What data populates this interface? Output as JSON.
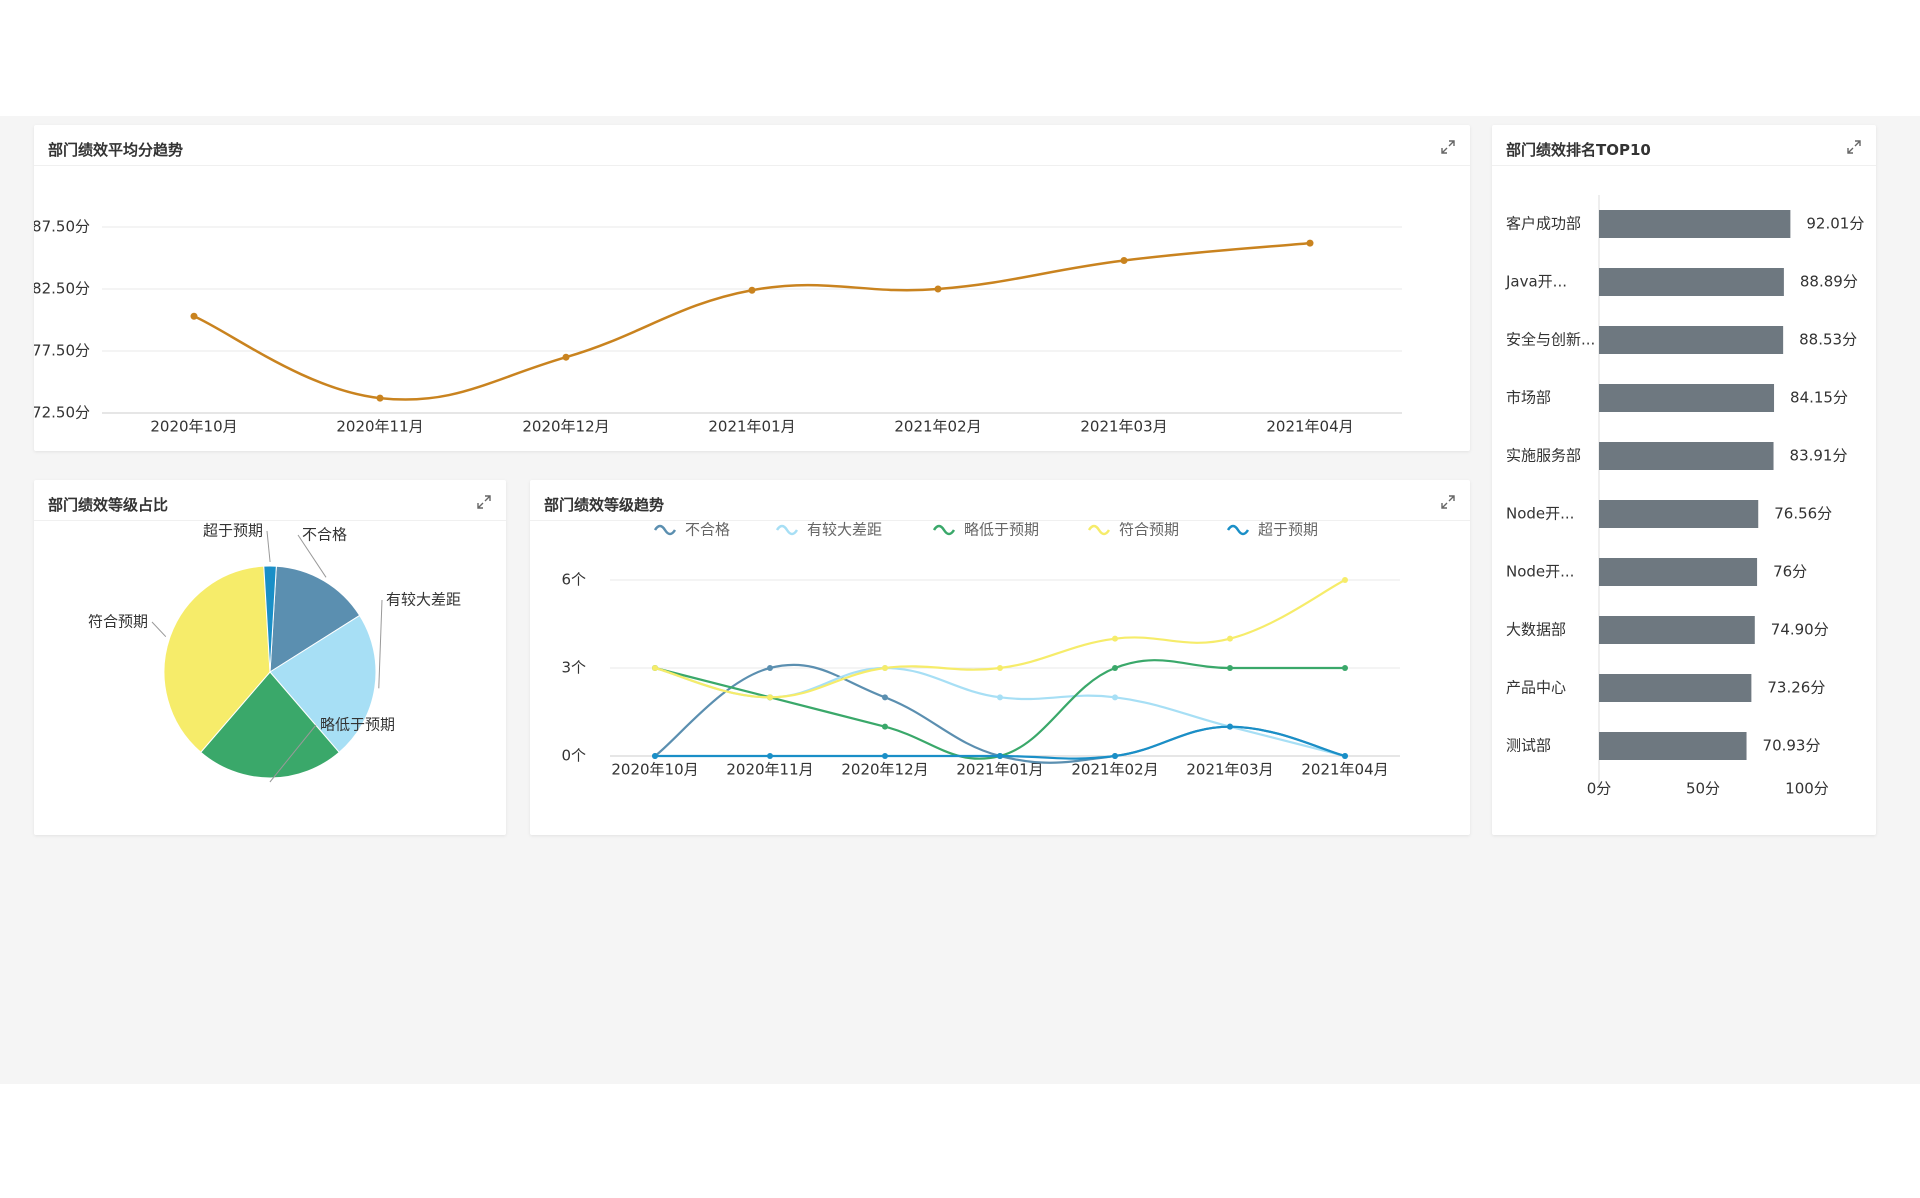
{
  "panels": {
    "line": {
      "title": "部门绩效平均分趋势"
    },
    "ranking": {
      "title": "部门绩效排名TOP10"
    },
    "pie": {
      "title": "部门绩效等级占比"
    },
    "grades": {
      "title": "部门绩效等级趋势"
    }
  },
  "icons": {
    "expand": "expand-arrows-icon"
  },
  "colors": {
    "avg_line": "#c9831f",
    "bar": "#6e7880",
    "不合格": "#5b8fb0",
    "有较大差距": "#a7dff5",
    "略低于预期": "#3aa86a",
    "符合预期": "#f6ec6a",
    "超于预期": "#1a8fc7"
  },
  "chart_data": [
    {
      "id": "avg-trend",
      "type": "line",
      "title": "部门绩效平均分趋势",
      "categories": [
        "2020年10月",
        "2020年11月",
        "2020年12月",
        "2021年01月",
        "2021年02月",
        "2021年03月",
        "2021年04月"
      ],
      "values": [
        80.3,
        73.7,
        77.0,
        82.4,
        82.5,
        84.8,
        86.2
      ],
      "y_ticks": [
        "72.50分",
        "77.50分",
        "82.50分",
        "87.50分"
      ],
      "ylim": [
        72.5,
        87.5
      ],
      "grid": true
    },
    {
      "id": "ranking",
      "type": "bar",
      "orientation": "horizontal",
      "title": "部门绩效排名TOP10",
      "categories": [
        "客户成功部",
        "Java开...",
        "安全与创新...",
        "市场部",
        "实施服务部",
        "Node开...",
        "Node开...",
        "大数据部",
        "产品中心",
        "测试部"
      ],
      "values": [
        92.01,
        88.89,
        88.53,
        84.15,
        83.91,
        76.56,
        76,
        74.9,
        73.26,
        70.93
      ],
      "value_labels": [
        "92.01分",
        "88.89分",
        "88.53分",
        "84.15分",
        "83.91分",
        "76.56分",
        "76分",
        "74.90分",
        "73.26分",
        "70.93分"
      ],
      "x_ticks": [
        "0分",
        "50分",
        "100分"
      ],
      "xlim": [
        0,
        100
      ]
    },
    {
      "id": "grade-share",
      "type": "pie",
      "title": "部门绩效等级占比",
      "labels": [
        "不合格",
        "有较大差距",
        "略低于预期",
        "符合预期",
        "超于预期"
      ],
      "values": [
        4,
        6,
        6,
        10,
        0.5
      ]
    },
    {
      "id": "grade-trend",
      "type": "line",
      "title": "部门绩效等级趋势",
      "categories": [
        "2020年10月",
        "2020年11月",
        "2020年12月",
        "2021年01月",
        "2021年02月",
        "2021年03月",
        "2021年04月"
      ],
      "series": [
        {
          "name": "不合格",
          "values": [
            0,
            3,
            2,
            0,
            0,
            1,
            0
          ]
        },
        {
          "name": "有较大差距",
          "values": [
            3,
            2,
            3,
            2,
            2,
            1,
            0
          ]
        },
        {
          "name": "略低于预期",
          "values": [
            3,
            2,
            1,
            0,
            3,
            3,
            3
          ]
        },
        {
          "name": "符合预期",
          "values": [
            3,
            2,
            3,
            3,
            4,
            4,
            6
          ]
        },
        {
          "name": "超于预期",
          "values": [
            0,
            0,
            0,
            0,
            0,
            1,
            0
          ]
        }
      ],
      "y_ticks": [
        "0个",
        "3个",
        "6个"
      ],
      "ylim": [
        0,
        6
      ],
      "legend_position": "top",
      "grid": true
    }
  ]
}
